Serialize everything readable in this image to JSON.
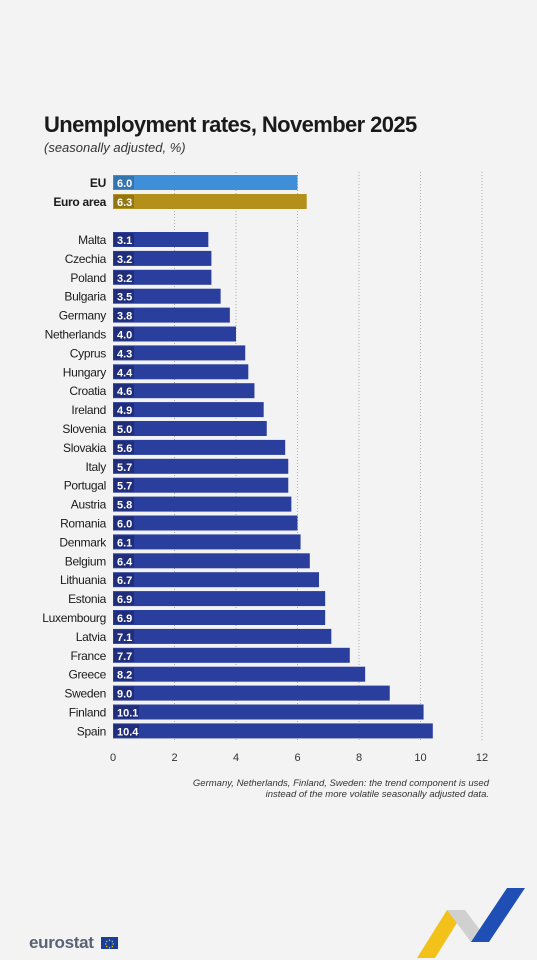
{
  "title": "Unemployment rates, November 2025",
  "subtitle": "(seasonally adjusted, %)",
  "note": "Germany, Netherlands, Finland, Sweden: the trend component is used instead of the more volatile seasonally adjusted data.",
  "brand": "eurostat",
  "colors": {
    "eu": "#3f8fd8",
    "euro_area": "#b39019",
    "countries": "#2a3f9d",
    "label_box": "#1f2d7a"
  },
  "chart_data": {
    "type": "bar",
    "orientation": "horizontal",
    "title": "Unemployment rates, November 2025",
    "subtitle": "(seasonally adjusted, %)",
    "xlim": [
      0,
      12
    ],
    "xticks": [
      0,
      2,
      4,
      6,
      8,
      10,
      12
    ],
    "aggregates": [
      {
        "label": "EU",
        "value": 6.0,
        "value_label": "6.0"
      },
      {
        "label": "Euro area",
        "value": 6.3,
        "value_label": "6.3"
      }
    ],
    "categories": [
      "Malta",
      "Czechia",
      "Poland",
      "Bulgaria",
      "Germany",
      "Netherlands",
      "Cyprus",
      "Hungary",
      "Croatia",
      "Ireland",
      "Slovenia",
      "Slovakia",
      "Italy",
      "Portugal",
      "Austria",
      "Romania",
      "Denmark",
      "Belgium",
      "Lithuania",
      "Estonia",
      "Luxembourg",
      "Latvia",
      "France",
      "Greece",
      "Sweden",
      "Finland",
      "Spain"
    ],
    "values": [
      3.1,
      3.2,
      3.2,
      3.5,
      3.8,
      4.0,
      4.3,
      4.4,
      4.6,
      4.9,
      5.0,
      5.6,
      5.7,
      5.7,
      5.8,
      6.0,
      6.1,
      6.4,
      6.7,
      6.9,
      6.9,
      7.1,
      7.7,
      8.2,
      9.0,
      10.1,
      10.4
    ],
    "value_labels": [
      "3.1",
      "3.2",
      "3.2",
      "3.5",
      "3.8",
      "4.0",
      "4.3",
      "4.4",
      "4.6",
      "4.9",
      "5.0",
      "5.6",
      "5.7",
      "5.7",
      "5.8",
      "6.0",
      "6.1",
      "6.4",
      "6.7",
      "6.9",
      "6.9",
      "7.1",
      "7.7",
      "8.2",
      "9.0",
      "10.1",
      "10.4"
    ],
    "grid": "vertical dotted"
  }
}
